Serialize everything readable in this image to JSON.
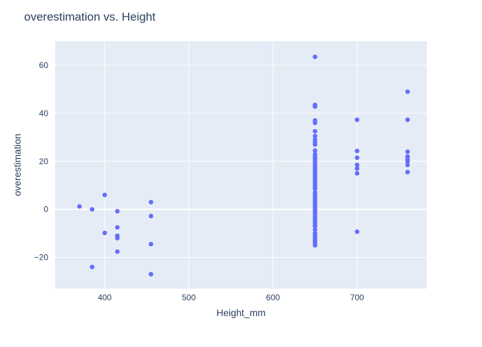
{
  "chart_data": {
    "type": "scatter",
    "title": "overestimation vs. Height",
    "xlabel": "Height_mm",
    "ylabel": "overestimation",
    "xlim": [
      341,
      783
    ],
    "ylim": [
      -33,
      70
    ],
    "x_ticks": [
      400,
      500,
      600,
      700
    ],
    "y_ticks": [
      -20,
      0,
      20,
      40,
      60
    ],
    "grid": true,
    "colors": {
      "plot_bg": "#E5ECF6",
      "grid": "#ffffff",
      "marker": "#636EFA",
      "text": "#2a3f5f",
      "title": "#2a3f5f"
    },
    "points": [
      [
        370,
        1.2
      ],
      [
        385,
        0
      ],
      [
        385,
        -24
      ],
      [
        400,
        6
      ],
      [
        400,
        -9.8
      ],
      [
        415,
        -0.8
      ],
      [
        415,
        -7.5
      ],
      [
        415,
        -11
      ],
      [
        415,
        -12
      ],
      [
        415,
        -17.6
      ],
      [
        455,
        3
      ],
      [
        455,
        -2.8
      ],
      [
        455,
        -14.5
      ],
      [
        455,
        -27
      ],
      [
        650,
        63.5
      ],
      [
        650,
        43.5
      ],
      [
        650,
        42.8
      ],
      [
        650,
        37
      ],
      [
        650,
        36
      ],
      [
        650,
        32.5
      ],
      [
        650,
        30.5
      ],
      [
        650,
        29
      ],
      [
        650,
        28
      ],
      [
        650,
        27
      ],
      [
        650,
        24.5
      ],
      [
        650,
        23
      ],
      [
        650,
        22
      ],
      [
        650,
        21
      ],
      [
        650,
        20
      ],
      [
        650,
        19
      ],
      [
        650,
        18
      ],
      [
        650,
        17
      ],
      [
        650,
        16
      ],
      [
        650,
        15
      ],
      [
        650,
        14
      ],
      [
        650,
        13
      ],
      [
        650,
        12
      ],
      [
        650,
        11
      ],
      [
        650,
        10
      ],
      [
        650,
        9
      ],
      [
        650,
        8.5
      ],
      [
        650,
        7
      ],
      [
        650,
        6
      ],
      [
        650,
        5
      ],
      [
        650,
        4
      ],
      [
        650,
        3
      ],
      [
        650,
        2
      ],
      [
        650,
        1
      ],
      [
        650,
        0
      ],
      [
        650,
        -1
      ],
      [
        650,
        -2
      ],
      [
        650,
        -3
      ],
      [
        650,
        -4
      ],
      [
        650,
        -5
      ],
      [
        650,
        -6
      ],
      [
        650,
        -7
      ],
      [
        650,
        -8.5
      ],
      [
        650,
        -10
      ],
      [
        650,
        -11
      ],
      [
        650,
        -12
      ],
      [
        650,
        -13
      ],
      [
        650,
        -14
      ],
      [
        650,
        -15
      ],
      [
        700,
        37.3
      ],
      [
        700,
        24.3
      ],
      [
        700,
        21.5
      ],
      [
        700,
        18.5
      ],
      [
        700,
        17
      ],
      [
        700,
        15
      ],
      [
        700,
        -9.3
      ],
      [
        760,
        49
      ],
      [
        760,
        37.3
      ],
      [
        760,
        24
      ],
      [
        760,
        22
      ],
      [
        760,
        21
      ],
      [
        760,
        20
      ],
      [
        760,
        18.5
      ],
      [
        760,
        15.5
      ]
    ]
  }
}
